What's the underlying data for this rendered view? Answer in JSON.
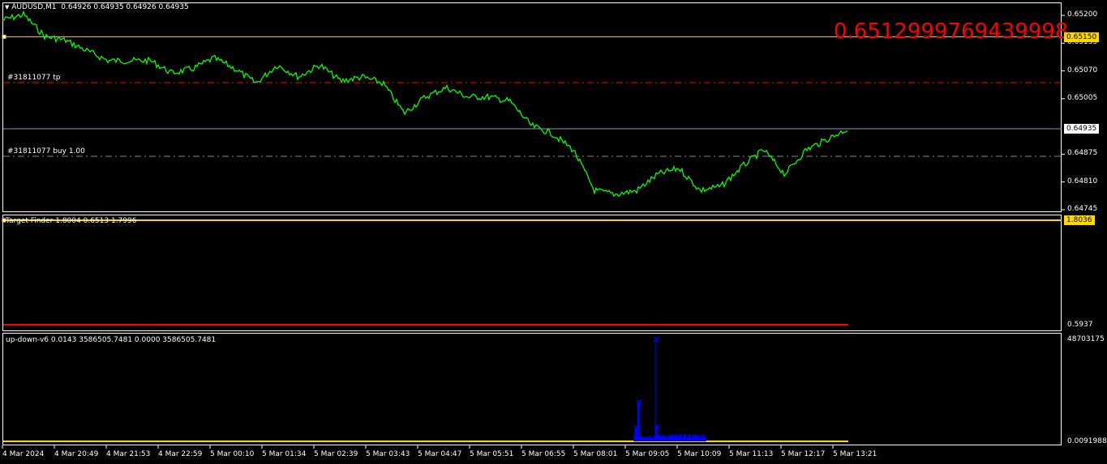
{
  "main_chart": {
    "header_icon": "triangle-down-icon",
    "symbol": "AUDUSD,M1",
    "ohlc": "0.64926 0.64935 0.64926 0.64935",
    "big_label": "0.6512999769439998",
    "big_label_color": "#ff0000",
    "tp_label": "#31811077 tp",
    "buy_label": "#31811077 buy 1.00",
    "price_ticks": [
      "0.65200",
      "0.65135",
      "0.65070",
      "0.65005",
      "0.64875",
      "0.64810",
      "0.64745"
    ],
    "price_range": [
      0.64745,
      0.652
    ],
    "hline_price": 0.6515,
    "hline_tag": "0.65150",
    "tp_price": 0.6504,
    "buy_price": 0.64875,
    "bid_price": 0.64935,
    "bid_tag": "0.64935",
    "line_color": "#00ff00",
    "price_path": [
      0.65189,
      0.65202,
      0.65151,
      0.65141,
      0.65117,
      0.65094,
      0.65094,
      0.65094,
      0.65065,
      0.65075,
      0.651,
      0.65075,
      0.65041,
      0.65084,
      0.65056,
      0.65084,
      0.65046,
      0.65056,
      0.65041,
      0.64971,
      0.65009,
      0.65031,
      0.65009,
      0.65009,
      0.64999,
      0.64942,
      0.64923,
      0.64885,
      0.6479,
      0.64781,
      0.6479,
      0.64828,
      0.64842,
      0.6479,
      0.648,
      0.64847,
      0.64885,
      0.64828,
      0.64885,
      0.6491,
      0.64935
    ]
  },
  "target_finder": {
    "label": "Target Finder 1.8004 0.6513 1.7996",
    "tag": "1.8036",
    "bottom_tick": "0.5937"
  },
  "up_down": {
    "label": "up-down-v6 0.0143 3586505.7481 0.0000 3586505.7481",
    "top_tick": "48703175",
    "bottom_tick": "0.0091988",
    "bar_color": "#0000ff",
    "spikes": [
      {
        "pos": 0.752,
        "value": 0.38
      },
      {
        "pos": 0.749,
        "value": 0.13
      },
      {
        "pos": 0.772,
        "value": 1.0
      },
      {
        "pos": 0.773,
        "value": 0.14
      }
    ]
  },
  "time_axis": [
    "4 Mar 2024",
    "4 Mar 20:49",
    "4 Mar 21:53",
    "4 Mar 22:59",
    "5 Mar 00:10",
    "5 Mar 01:34",
    "5 Mar 02:39",
    "5 Mar 03:43",
    "5 Mar 04:47",
    "5 Mar 05:51",
    "5 Mar 06:55",
    "5 Mar 08:01",
    "5 Mar 09:05",
    "5 Mar 10:09",
    "5 Mar 11:13",
    "5 Mar 12:17",
    "5 Mar 13:21"
  ]
}
